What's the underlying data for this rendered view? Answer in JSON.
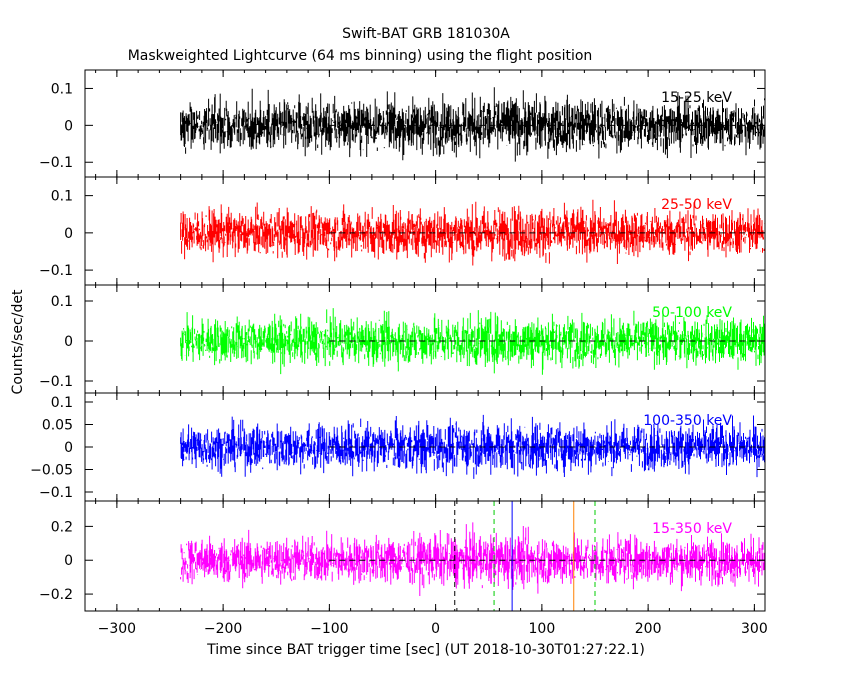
{
  "colors": {
    "background": "#ffffff",
    "axis": "#000000",
    "band_15_25": "#000000",
    "band_25_50": "#ff0000",
    "band_50_100": "#00ff00",
    "band_100_350": "#0000ff",
    "band_15_350": "#ff00ff",
    "marker_black": "#000000",
    "marker_green": "#00cc00",
    "marker_blue": "#0000ff",
    "marker_orange": "#ff8000"
  },
  "chart_data": {
    "type": "line",
    "title": "Swift-BAT GRB 181030A",
    "subtitle": "Maskweighted Lightcurve (64 ms binning) using the flight position",
    "xlabel": "Time since BAT trigger time [sec] (UT 2018-10-30T01:27:22.1)",
    "ylabel": "Counts/sec/det",
    "xlim": [
      -330,
      310
    ],
    "x_ticks": [
      -300,
      -200,
      -100,
      0,
      100,
      200,
      300
    ],
    "data_start": -240,
    "data_end": 310,
    "baseline_start": -100,
    "grid": false,
    "panels": [
      {
        "name": "15-25 keV",
        "color": "#000000",
        "ylim": [
          -0.14,
          0.15
        ],
        "yticks": [
          -0.1,
          0,
          0.1
        ],
        "ytick_labels": [
          "−0.1",
          "0",
          "0.1"
        ],
        "noise_amplitude": 0.06,
        "mean": 0.0
      },
      {
        "name": "25-50 keV",
        "color": "#ff0000",
        "ylim": [
          -0.14,
          0.15
        ],
        "yticks": [
          -0.1,
          0,
          0.1
        ],
        "ytick_labels": [
          "−0.1",
          "0",
          "0.1"
        ],
        "noise_amplitude": 0.055,
        "mean": 0.0
      },
      {
        "name": "50-100 keV",
        "color": "#00ff00",
        "ylim": [
          -0.13,
          0.14
        ],
        "yticks": [
          -0.1,
          0,
          0.1
        ],
        "ytick_labels": [
          "−0.1",
          "0",
          "0.1"
        ],
        "noise_amplitude": 0.05,
        "mean": 0.0
      },
      {
        "name": "100-350 keV",
        "color": "#0000ff",
        "ylim": [
          -0.12,
          0.12
        ],
        "yticks": [
          -0.1,
          -0.05,
          0,
          0.05,
          0.1
        ],
        "ytick_labels": [
          "−0.1",
          "−0.05",
          "0",
          "0.05",
          "0.1"
        ],
        "noise_amplitude": 0.045,
        "mean": 0.0
      },
      {
        "name": "15-350 keV",
        "color": "#ff00ff",
        "ylim": [
          -0.3,
          0.35
        ],
        "yticks": [
          -0.2,
          0,
          0.2
        ],
        "ytick_labels": [
          "−0.2",
          "0",
          "0.2"
        ],
        "noise_amplitude": 0.12,
        "mean": 0.0,
        "markers": [
          {
            "x": 18,
            "color": "#000000",
            "style": "dashed"
          },
          {
            "x": 55,
            "color": "#00cc00",
            "style": "dashed"
          },
          {
            "x": 72,
            "color": "#0000ff",
            "style": "solid"
          },
          {
            "x": 130,
            "color": "#ff8000",
            "style": "solid"
          },
          {
            "x": 150,
            "color": "#00cc00",
            "style": "dashed"
          }
        ]
      }
    ]
  }
}
